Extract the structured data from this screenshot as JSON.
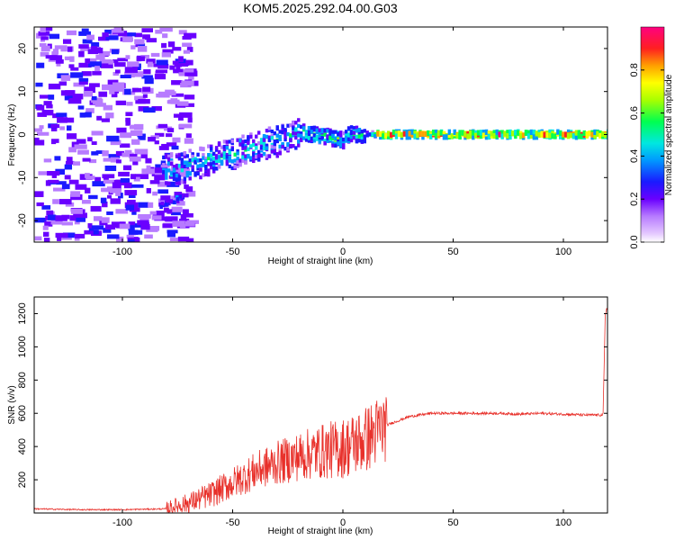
{
  "title": "KOM5.2025.292.04.00.G03",
  "chart_data": [
    {
      "type": "heatmap",
      "xlabel": "Height of straight line (km)",
      "ylabel": "Frequency (Hz)",
      "xlim": [
        -140,
        120
      ],
      "ylim": [
        -25,
        25
      ],
      "xticks": [
        -100,
        -50,
        0,
        50,
        100
      ],
      "yticks": [
        -20,
        -10,
        0,
        10,
        20
      ],
      "colorbar": {
        "label": "Normalized spectral amplitude",
        "range": [
          0,
          1
        ],
        "ticks": [
          "0.0",
          "0.2",
          "0.4",
          "0.6",
          "0.8"
        ]
      },
      "features": [
        {
          "name": "main-signal-band",
          "x_range": [
            -80,
            120
          ],
          "freq_start": -7,
          "freq_end": 0,
          "description_values": {
            "strong_from_x": 15,
            "strong_to_x": 120
          }
        },
        {
          "name": "lower-branch",
          "x_range": [
            -84,
            -73
          ],
          "freq_range": [
            -17,
            -14
          ]
        }
      ]
    },
    {
      "type": "line",
      "xlabel": "Height of straight line (km)",
      "ylabel": "SNR (v/v)",
      "xlim": [
        -140,
        120
      ],
      "ylim": [
        0,
        1300
      ],
      "xticks": [
        -100,
        -50,
        0,
        50,
        100
      ],
      "yticks": [
        200,
        400,
        600,
        800,
        1000,
        1200
      ],
      "series": [
        {
          "name": "SNR",
          "color": "#e8302a",
          "x": [
            -140,
            -120,
            -100,
            -80,
            -70,
            -60,
            -50,
            -40,
            -30,
            -20,
            -10,
            0,
            10,
            20,
            30,
            40,
            50,
            60,
            70,
            80,
            90,
            100,
            110,
            118,
            119,
            120
          ],
          "y": [
            25,
            20,
            20,
            25,
            60,
            110,
            180,
            250,
            300,
            340,
            370,
            390,
            440,
            530,
            580,
            600,
            600,
            600,
            600,
            595,
            600,
            595,
            590,
            590,
            1200,
            1250
          ]
        }
      ]
    }
  ]
}
